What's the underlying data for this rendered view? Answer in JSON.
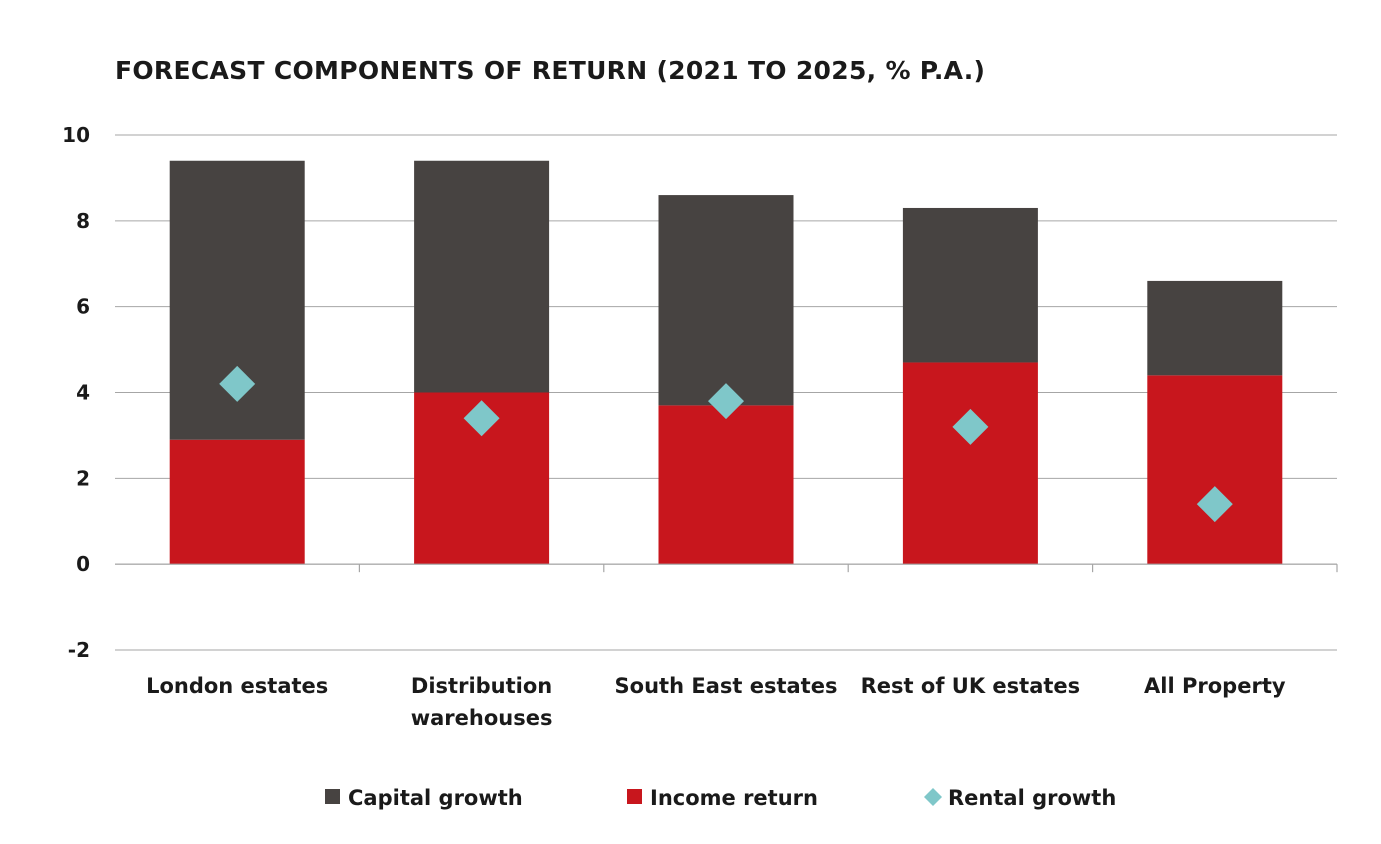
{
  "chart_data": {
    "type": "bar",
    "stacked": true,
    "title": "FORECAST COMPONENTS OF RETURN (2021 TO 2025, % P.A.)",
    "categories": [
      [
        "London estates"
      ],
      [
        "Distribution",
        "warehouses"
      ],
      [
        "South East estates"
      ],
      [
        "Rest of UK estates"
      ],
      [
        "All Property"
      ]
    ],
    "series": [
      {
        "name": "Income return",
        "type": "bar",
        "color": "#c8161d",
        "values": [
          2.9,
          4.0,
          3.7,
          4.7,
          4.4
        ]
      },
      {
        "name": "Capital growth",
        "type": "bar",
        "color": "#474341",
        "values": [
          6.5,
          5.4,
          4.9,
          3.6,
          2.2
        ]
      },
      {
        "name": "Rental growth",
        "type": "marker",
        "marker": "diamond",
        "color": "#7fc7c9",
        "values": [
          4.2,
          3.4,
          3.8,
          3.2,
          1.4
        ]
      }
    ],
    "legend_order": [
      "Capital growth",
      "Income return",
      "Rental growth"
    ],
    "ylim": [
      -2,
      10
    ],
    "yticks": [
      -2,
      0,
      2,
      4,
      6,
      8,
      10
    ],
    "xlabel": "",
    "ylabel": "",
    "grid": true,
    "legend_position": "bottom"
  }
}
